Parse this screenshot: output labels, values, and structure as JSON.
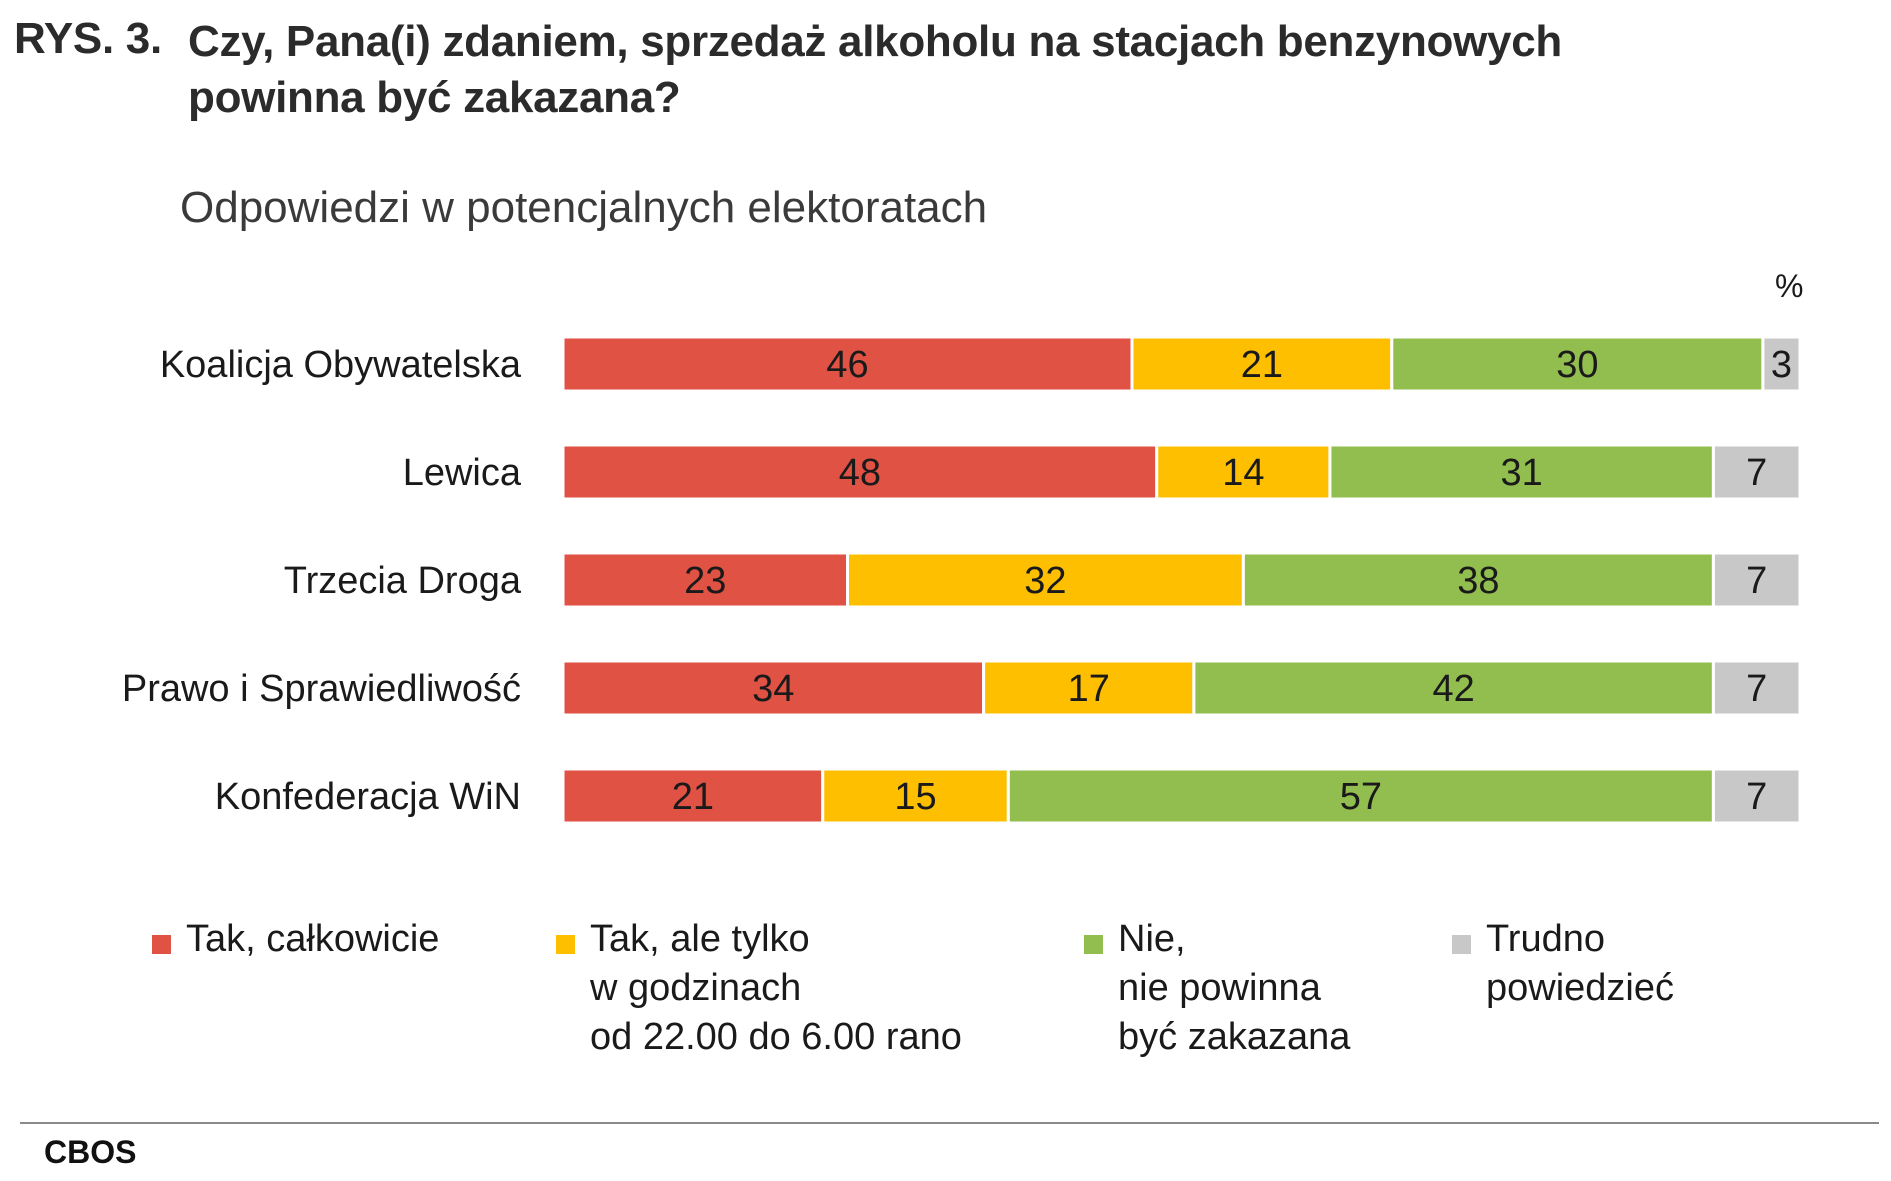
{
  "figure_label": "RYS. 3.",
  "title": "Czy, Pana(i) zdaniem, sprzedaż alkoholu na stacjach benzynowych powinna być zakazana?",
  "subtitle": "Odpowiedzi w potencjalnych elektoratach",
  "unit": "%",
  "source": "CBOS",
  "chart_data": {
    "type": "bar",
    "orientation": "horizontal",
    "stacked": true,
    "categories": [
      "Koalicja Obywatelska",
      "Lewica",
      "Trzecia Droga",
      "Prawo i Sprawiedliwość",
      "Konfederacja WiN"
    ],
    "series": [
      {
        "name": "Tak, całkowicie",
        "color": "#e05244",
        "values": [
          46,
          48,
          23,
          34,
          21
        ]
      },
      {
        "name": "Tak, ale tylko\nw godzinach\nod 22.00 do 6.00 rano",
        "color": "#fdbf00",
        "values": [
          21,
          14,
          32,
          17,
          15
        ]
      },
      {
        "name": "Nie,\nnie powinna\nbyć zakazana",
        "color": "#92bd4f",
        "values": [
          30,
          31,
          38,
          42,
          57
        ]
      },
      {
        "name": "Trudno\npowiedzieć",
        "color": "#c8c8c8",
        "values": [
          3,
          7,
          7,
          7,
          7
        ]
      }
    ],
    "xlim": [
      0,
      100
    ],
    "grid": false,
    "data_labels": true,
    "legend_position": "bottom"
  }
}
